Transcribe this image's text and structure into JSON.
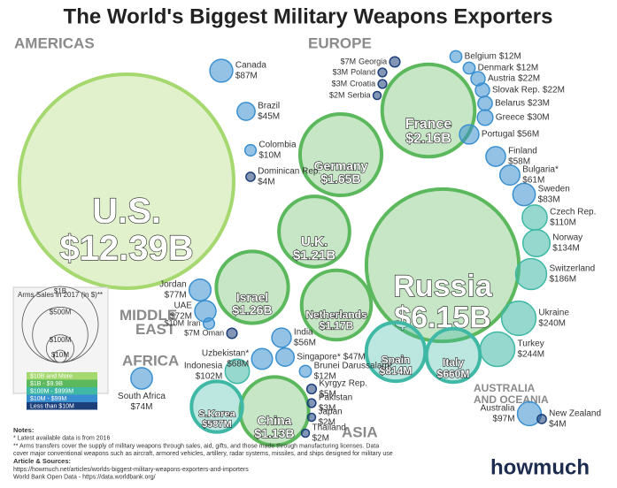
{
  "chart_data": {
    "type": "bubble",
    "title": "The World's Biggest Military Weapons Exporters",
    "regions": [
      "AMERICAS",
      "EUROPE",
      "MIDDLE EAST",
      "AFRICA",
      "ASIA",
      "AUSTRALIA AND OCEANIA"
    ],
    "categories": [
      "U.S.",
      "Canada",
      "Brazil",
      "Colombia",
      "Dominican Rep.",
      "Russia",
      "France",
      "Germany",
      "U.K.",
      "Netherlands",
      "Georgia",
      "Poland",
      "Croatia",
      "Serbia",
      "Belgium",
      "Denmark",
      "Austria",
      "Slovak Rep.",
      "Belarus",
      "Greece",
      "Portugal",
      "Finland",
      "Bulgaria*",
      "Sweden",
      "Czech Rep.",
      "Norway",
      "Switzerland",
      "Ukraine",
      "Turkey",
      "Spain",
      "Italy",
      "Israel",
      "Jordan",
      "UAE",
      "Iran",
      "Oman",
      "South Africa",
      "China",
      "S.Korea",
      "India",
      "Uzbekistan*",
      "Singapore*",
      "Brunei Darussalam*",
      "Indonesia",
      "Kyrgyz Rep.",
      "Pakistan",
      "Japan",
      "Thailand",
      "Australia",
      "New Zealand"
    ],
    "values": [
      12390,
      87,
      45,
      10,
      4,
      6150,
      2160,
      1650,
      1210,
      1170,
      7,
      3,
      3,
      2,
      12,
      12,
      22,
      22,
      23,
      30,
      56,
      58,
      61,
      83,
      110,
      134,
      186,
      240,
      244,
      814,
      660,
      1260,
      77,
      72,
      10,
      7,
      74,
      1130,
      587,
      56,
      68,
      47,
      12,
      102,
      5,
      3,
      2,
      2,
      97,
      4
    ],
    "value_labels": [
      "$12.39B",
      "$87M",
      "$45M",
      "$10M",
      "$4M",
      "$6.15B",
      "$2.16B",
      "$1.65B",
      "$1.21B",
      "$1.17B",
      "$7M",
      "$3M",
      "$3M",
      "$2M",
      "$12M",
      "$12M",
      "$22M",
      "$22M",
      "$23M",
      "$30M",
      "$56M",
      "$58M",
      "$61M",
      "$83M",
      "$110M",
      "$134M",
      "$186M",
      "$240M",
      "$244M",
      "$814M",
      "$660M",
      "$1.26B",
      "$77M",
      "$72M",
      "$10M",
      "$7M",
      "$74M",
      "$1.13B",
      "$587M",
      "$56M",
      "$68M",
      "$47M",
      "$12M",
      "$102M",
      "$5M",
      "$3M",
      "$2M",
      "$2M",
      "$97M",
      "$4M"
    ],
    "colors": [
      "#a5d86e",
      "#3a8fd0",
      "#3a8fd0",
      "#3a8fd0",
      "#1d3f7a",
      "#5cb85c",
      "#5cb85c",
      "#5cb85c",
      "#5cb85c",
      "#5cb85c",
      "#1d3f7a",
      "#1d3f7a",
      "#1d3f7a",
      "#1d3f7a",
      "#3a8fd0",
      "#3a8fd0",
      "#3a8fd0",
      "#3a8fd0",
      "#3a8fd0",
      "#3a8fd0",
      "#3a8fd0",
      "#3a8fd0",
      "#3a8fd0",
      "#3a8fd0",
      "#3fb8a5",
      "#3fb8a5",
      "#3fb8a5",
      "#3fb8a5",
      "#3fb8a5",
      "#3fb8a5",
      "#3fb8a5",
      "#5cb85c",
      "#3a8fd0",
      "#3a8fd0",
      "#3a8fd0",
      "#1d3f7a",
      "#3a8fd0",
      "#5cb85c",
      "#3fb8a5",
      "#3a8fd0",
      "#3a8fd0",
      "#3a8fd0",
      "#3a8fd0",
      "#3fb8a5",
      "#1d3f7a",
      "#1d3f7a",
      "#1d3f7a",
      "#1d3f7a",
      "#3a8fd0",
      "#1d3f7a"
    ],
    "size_legend": {
      "title": "Arms Sales in 2017 (in $)**",
      "values": [
        1000,
        500,
        100,
        10
      ],
      "value_labels": [
        "$1B",
        "$500M",
        "$100M",
        "$10M"
      ]
    },
    "color_legend": {
      "labels": [
        "$10B and More",
        "$1B - $9.9B",
        "$100M - $999M",
        "$10M - $99M",
        "Less than $10M"
      ],
      "colors": [
        "#a5d86e",
        "#5cb85c",
        "#3fb8a5",
        "#3a8fd0",
        "#1d3f7a"
      ]
    },
    "notes": [
      "Notes:",
      "* Latest available data is from 2016",
      "** Arms transfers cover the supply of military weapons through sales, aid, gifts, and those made through manufacturing licenses. Data",
      "cover major conventional weapons such as aircraft, armored vehicles, artillery, radar systems, missiles, and ships designed for military use",
      "Article & Sources:",
      "https://howmuch.net/articles/worlds-biggest-military-weapons-exporters-and-importers",
      "World Bank Open Data - https://data.worldbank.org/"
    ],
    "logo": "howmuch"
  }
}
